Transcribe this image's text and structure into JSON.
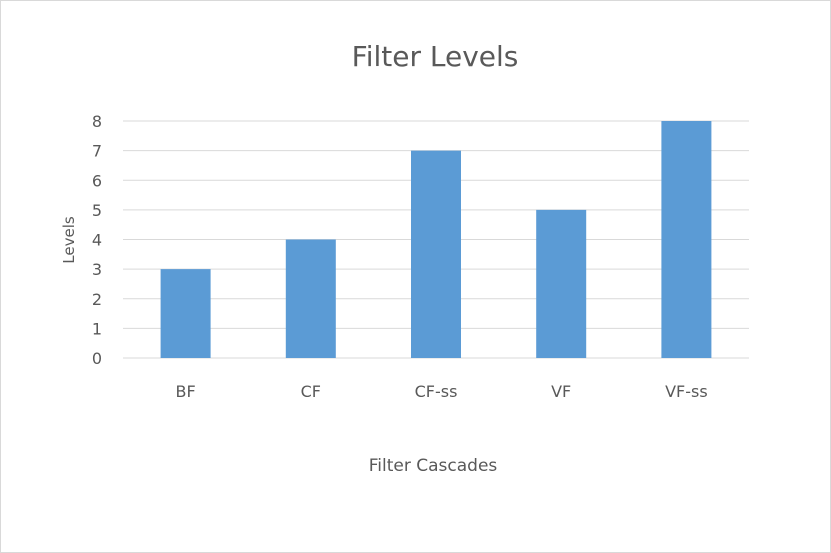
{
  "chart_data": {
    "type": "bar",
    "title": "Filter Levels",
    "xlabel": "Filter Cascades",
    "ylabel": "Levels",
    "categories": [
      "BF",
      "CF",
      "CF-ss",
      "VF",
      "VF-ss"
    ],
    "values": [
      3,
      4,
      7,
      5,
      8
    ],
    "ylim": [
      0,
      8
    ],
    "yticks": [
      0,
      1,
      2,
      3,
      4,
      5,
      6,
      7,
      8
    ],
    "grid": true,
    "legend": "none",
    "bar_color": "#5b9bd5",
    "grid_color": "#d9d9d9"
  }
}
